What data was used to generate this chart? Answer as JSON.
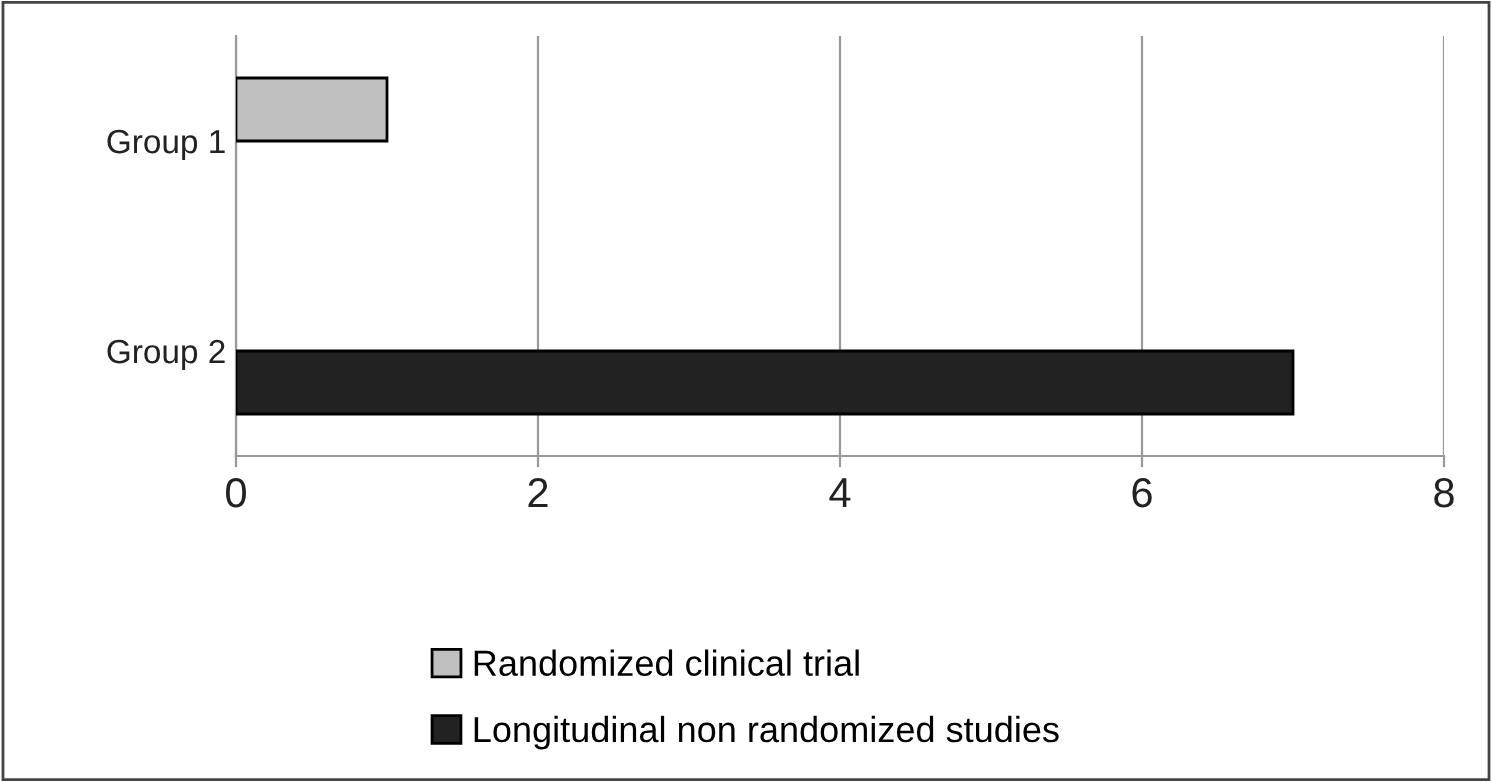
{
  "chart_data": {
    "type": "bar",
    "orientation": "horizontal",
    "categories": [
      "Group 1",
      "Group 2"
    ],
    "series": [
      {
        "name": "Randomized clinical trial",
        "color": "#c0c0c0",
        "values": [
          1,
          null
        ]
      },
      {
        "name": "Longitudinal non randomized studies",
        "color": "#222222",
        "values": [
          null,
          7
        ]
      }
    ],
    "xlim": [
      0,
      8
    ],
    "xticks": [
      0,
      2,
      4,
      6,
      8
    ],
    "grid": "x",
    "legend": "bottom"
  }
}
